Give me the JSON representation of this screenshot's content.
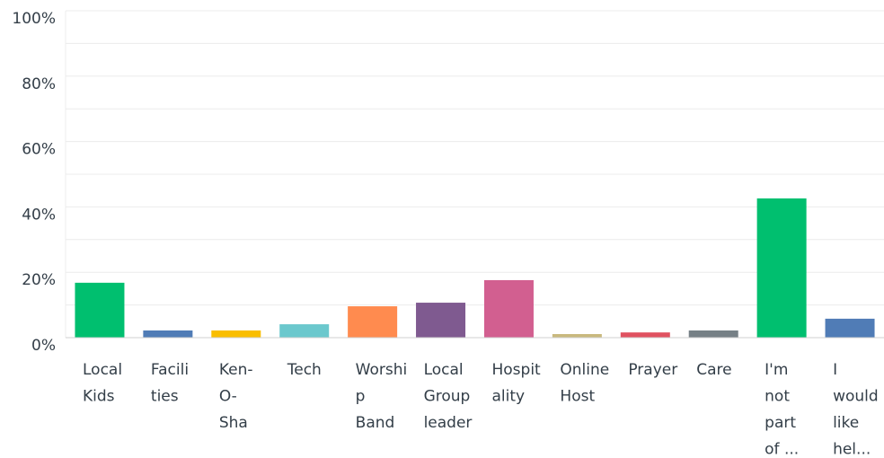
{
  "chart_data": {
    "type": "bar",
    "categories": [
      [
        "Local",
        "Kids"
      ],
      [
        "Facili",
        "ties"
      ],
      [
        "Ken-",
        "O-",
        "Sha"
      ],
      [
        "Tech"
      ],
      [
        "Worshi",
        "p",
        "Band"
      ],
      [
        "Local",
        "Group",
        "leader"
      ],
      [
        "Hospit",
        "ality"
      ],
      [
        "Online",
        "Host"
      ],
      [
        "Prayer"
      ],
      [
        "Care"
      ],
      [
        "I'm",
        "not",
        "part",
        "of ..."
      ],
      [
        "I",
        "would",
        "like",
        "hel..."
      ]
    ],
    "values": [
      16.8,
      2.2,
      2.2,
      4.1,
      9.6,
      10.7,
      17.6,
      1.1,
      1.6,
      2.2,
      42.6,
      5.8
    ],
    "colors": [
      "#00bf6f",
      "#507cb6",
      "#f9be00",
      "#6bc8cd",
      "#ff8b4f",
      "#7f5a90",
      "#d25f90",
      "#c9b97e",
      "#e05260",
      "#768086",
      "#00bf6f",
      "#507cb6"
    ],
    "ylim": [
      0,
      100
    ],
    "yticks": [
      {
        "value": 0,
        "label": "0%"
      },
      {
        "value": 20,
        "label": "20%"
      },
      {
        "value": 40,
        "label": "40%"
      },
      {
        "value": 60,
        "label": "60%"
      },
      {
        "value": 80,
        "label": "80%"
      },
      {
        "value": 100,
        "label": "100%"
      }
    ],
    "ygrid": [
      10,
      20,
      30,
      40,
      50,
      60,
      70,
      80,
      90,
      100
    ],
    "grid": true
  }
}
